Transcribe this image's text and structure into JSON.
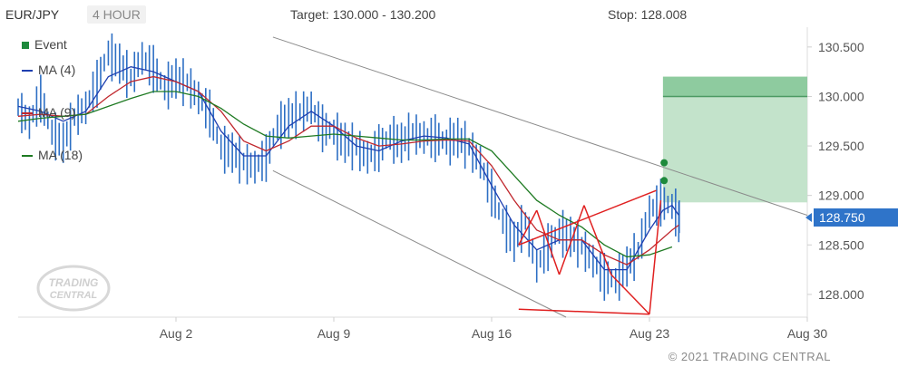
{
  "header": {
    "symbol": "EUR/JPY",
    "timeframe": "4 HOUR",
    "target": "Target: 130.000 - 130.200",
    "stop": "Stop: 128.008"
  },
  "legend": [
    {
      "label": "Event",
      "color": "#1e8a3c",
      "kind": "square"
    },
    {
      "label": "MA (4)",
      "color": "#1f3fb0",
      "kind": "line"
    },
    {
      "label": "MA (9)",
      "color": "#c0272d",
      "kind": "line"
    },
    {
      "label": "MA (18)",
      "color": "#1e7a22",
      "kind": "line"
    }
  ],
  "last_price": "128.750",
  "copyright": "© 2021 TRADING CENTRAL",
  "logo_text": [
    "TRADING",
    "CENTRAL"
  ],
  "chart_data": {
    "type": "line",
    "x_ticks": [
      {
        "label": "Aug 2",
        "day": 2
      },
      {
        "label": "Aug 9",
        "day": 9
      },
      {
        "label": "Aug 16",
        "day": 16
      },
      {
        "label": "Aug 23",
        "day": 23
      },
      {
        "label": "Aug 30",
        "day": 30
      }
    ],
    "y_ticks": [
      "128.000",
      "128.500",
      "129.000",
      "129.500",
      "130.000",
      "130.500"
    ],
    "ylim": [
      127.77,
      130.7
    ],
    "xlim": [
      -5,
      30
    ],
    "target_zone": {
      "from": 128.93,
      "to": 130.2,
      "band": [
        130.0,
        130.2
      ],
      "day_from": 23.6,
      "day_to": 30
    },
    "events": [
      {
        "day": 23.65,
        "value": 129.33
      },
      {
        "day": 23.65,
        "value": 129.15
      }
    ],
    "price_series": [
      [
        -5,
        129.9
      ],
      [
        -4.5,
        129.75
      ],
      [
        -4,
        130.0
      ],
      [
        -3.5,
        129.65
      ],
      [
        -3,
        129.55
      ],
      [
        -2.5,
        129.8
      ],
      [
        -2,
        129.9
      ],
      [
        -1.5,
        130.15
      ],
      [
        -1,
        130.45
      ],
      [
        -0.5,
        130.35
      ],
      [
        0,
        130.2
      ],
      [
        0.5,
        130.4
      ],
      [
        1,
        130.3
      ],
      [
        1.5,
        130.1
      ],
      [
        2,
        130.2
      ],
      [
        2.5,
        130.15
      ],
      [
        3,
        130.0
      ],
      [
        3.5,
        129.85
      ],
      [
        4,
        129.5
      ],
      [
        4.5,
        129.45
      ],
      [
        5,
        129.35
      ],
      [
        5.5,
        129.3
      ],
      [
        6,
        129.4
      ],
      [
        6.5,
        129.7
      ],
      [
        7,
        129.8
      ],
      [
        7.5,
        129.85
      ],
      [
        8,
        129.9
      ],
      [
        8.5,
        129.7
      ],
      [
        9,
        129.65
      ],
      [
        9.5,
        129.55
      ],
      [
        10,
        129.5
      ],
      [
        10.5,
        129.4
      ],
      [
        11,
        129.5
      ],
      [
        11.5,
        129.6
      ],
      [
        12,
        129.55
      ],
      [
        12.5,
        129.65
      ],
      [
        13,
        129.6
      ],
      [
        13.5,
        129.6
      ],
      [
        14,
        129.55
      ],
      [
        14.5,
        129.6
      ],
      [
        15,
        129.5
      ],
      [
        15.5,
        129.35
      ],
      [
        16,
        129.05
      ],
      [
        16.5,
        128.75
      ],
      [
        17,
        128.55
      ],
      [
        17.5,
        128.75
      ],
      [
        18,
        128.3
      ],
      [
        18.5,
        128.5
      ],
      [
        19,
        128.65
      ],
      [
        19.5,
        128.6
      ],
      [
        20,
        128.5
      ],
      [
        20.5,
        128.35
      ],
      [
        21,
        128.2
      ],
      [
        21.5,
        128.15
      ],
      [
        22,
        128.3
      ],
      [
        22.5,
        128.45
      ],
      [
        23,
        128.85
      ],
      [
        23.5,
        128.95
      ],
      [
        24,
        128.9
      ],
      [
        24.3,
        128.75
      ]
    ],
    "series": [
      {
        "name": "MA (4)",
        "color": "#1f3fb0",
        "values": [
          [
            -5,
            129.9
          ],
          [
            -4,
            129.85
          ],
          [
            -3,
            129.75
          ],
          [
            -2,
            129.85
          ],
          [
            -1,
            130.2
          ],
          [
            0,
            130.3
          ],
          [
            1,
            130.25
          ],
          [
            2,
            130.15
          ],
          [
            3,
            130.05
          ],
          [
            4,
            129.65
          ],
          [
            5,
            129.4
          ],
          [
            6,
            129.4
          ],
          [
            7,
            129.7
          ],
          [
            8,
            129.85
          ],
          [
            9,
            129.7
          ],
          [
            10,
            129.5
          ],
          [
            11,
            129.45
          ],
          [
            12,
            129.55
          ],
          [
            13,
            129.6
          ],
          [
            14,
            129.58
          ],
          [
            15,
            129.52
          ],
          [
            16,
            129.1
          ],
          [
            17,
            128.7
          ],
          [
            18,
            128.45
          ],
          [
            19,
            128.55
          ],
          [
            20,
            128.55
          ],
          [
            21,
            128.25
          ],
          [
            22,
            128.25
          ],
          [
            23,
            128.65
          ],
          [
            23.6,
            128.85
          ],
          [
            24,
            128.9
          ],
          [
            24.3,
            128.8
          ]
        ]
      },
      {
        "name": "MA (9)",
        "color": "#c0272d",
        "values": [
          [
            -5,
            129.8
          ],
          [
            -4,
            129.82
          ],
          [
            -3,
            129.8
          ],
          [
            -2,
            129.82
          ],
          [
            -1,
            130.0
          ],
          [
            0,
            130.15
          ],
          [
            1,
            130.2
          ],
          [
            2,
            130.15
          ],
          [
            3,
            130.05
          ],
          [
            4,
            129.85
          ],
          [
            5,
            129.55
          ],
          [
            6,
            129.45
          ],
          [
            7,
            129.55
          ],
          [
            8,
            129.7
          ],
          [
            9,
            129.7
          ],
          [
            10,
            129.58
          ],
          [
            11,
            129.5
          ],
          [
            12,
            129.52
          ],
          [
            13,
            129.55
          ],
          [
            14,
            129.56
          ],
          [
            15,
            129.55
          ],
          [
            16,
            129.3
          ],
          [
            17,
            128.95
          ],
          [
            18,
            128.65
          ],
          [
            19,
            128.55
          ],
          [
            20,
            128.55
          ],
          [
            21,
            128.4
          ],
          [
            22,
            128.3
          ],
          [
            23,
            128.45
          ],
          [
            24,
            128.65
          ],
          [
            24.3,
            128.7
          ]
        ]
      },
      {
        "name": "MA (18)",
        "color": "#1e7a22",
        "values": [
          [
            -5,
            129.75
          ],
          [
            -4,
            129.78
          ],
          [
            -3,
            129.8
          ],
          [
            -2,
            129.82
          ],
          [
            -1,
            129.9
          ],
          [
            0,
            129.98
          ],
          [
            1,
            130.05
          ],
          [
            2,
            130.05
          ],
          [
            3,
            130.0
          ],
          [
            4,
            129.88
          ],
          [
            5,
            129.72
          ],
          [
            6,
            129.6
          ],
          [
            7,
            129.58
          ],
          [
            8,
            129.6
          ],
          [
            9,
            129.62
          ],
          [
            10,
            129.6
          ],
          [
            11,
            129.58
          ],
          [
            12,
            129.56
          ],
          [
            13,
            129.56
          ],
          [
            14,
            129.57
          ],
          [
            15,
            129.57
          ],
          [
            16,
            129.45
          ],
          [
            17,
            129.2
          ],
          [
            18,
            128.95
          ],
          [
            19,
            128.8
          ],
          [
            20,
            128.68
          ],
          [
            21,
            128.5
          ],
          [
            22,
            128.38
          ],
          [
            23,
            128.4
          ],
          [
            24,
            128.48
          ]
        ]
      }
    ],
    "channel_lines": [
      {
        "from": [
          6.3,
          130.6
        ],
        "to": [
          30,
          128.8
        ],
        "color": "#8a8a8a"
      },
      {
        "from": [
          6.3,
          129.25
        ],
        "to": [
          19.3,
          127.77
        ],
        "color": "#8a8a8a"
      }
    ],
    "pattern_lines": [
      {
        "from": [
          17.2,
          128.5
        ],
        "to": [
          23.3,
          129.05
        ],
        "color": "#e02020"
      },
      {
        "from": [
          17.2,
          127.85
        ],
        "to": [
          23.0,
          127.8
        ],
        "color": "#e02020"
      },
      {
        "from": [
          17.2,
          128.5
        ],
        "to": [
          18.0,
          128.85
        ],
        "color": "#e02020"
      },
      {
        "from": [
          18.0,
          128.85
        ],
        "to": [
          19.0,
          128.2
        ],
        "color": "#e02020"
      },
      {
        "from": [
          19.0,
          128.2
        ],
        "to": [
          20.1,
          128.9
        ],
        "color": "#e02020"
      },
      {
        "from": [
          20.1,
          128.9
        ],
        "to": [
          21.3,
          128.2
        ],
        "color": "#e02020"
      },
      {
        "from": [
          21.3,
          128.2
        ],
        "to": [
          23.0,
          127.8
        ],
        "color": "#e02020"
      },
      {
        "from": [
          23.0,
          127.8
        ],
        "to": [
          23.5,
          128.95
        ],
        "color": "#e02020"
      }
    ]
  }
}
